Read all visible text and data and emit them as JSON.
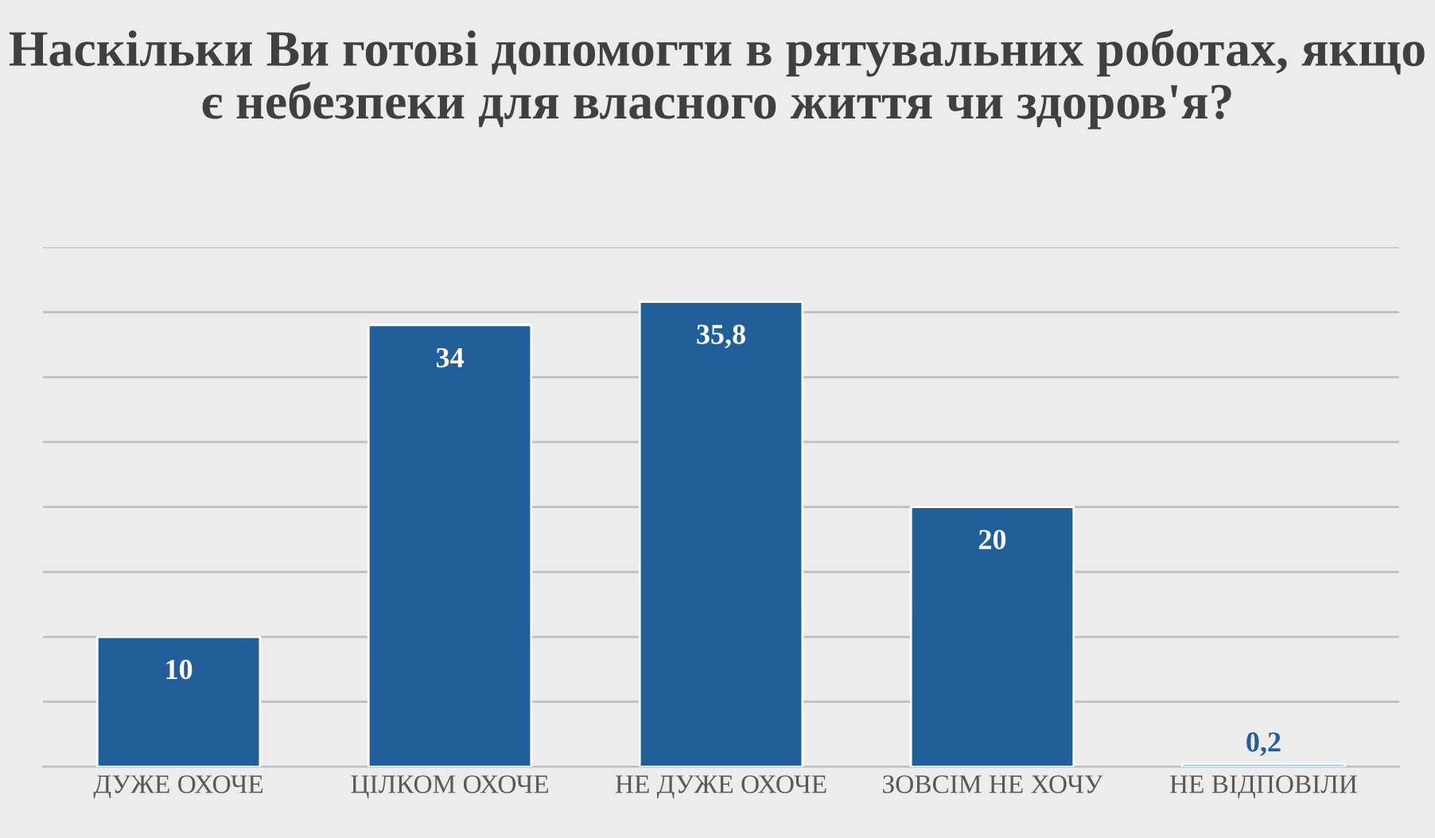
{
  "chart_data": {
    "type": "bar",
    "title": "Наскільки Ви готові допомогти в рятувальних роботах, якщо є небезпеки для власного життя чи здоров'я?",
    "categories": [
      "ДУЖЕ ОХОЧЕ",
      "ЦІЛКОМ ОХОЧЕ",
      "НЕ ДУЖЕ ОХОЧЕ",
      "ЗОВСІМ НЕ ХОЧУ",
      "НЕ ВІДПОВІЛИ"
    ],
    "values": [
      10,
      34,
      35.8,
      20,
      0.2
    ],
    "value_labels": [
      "10",
      "34",
      "35,8",
      "20",
      "0,2"
    ],
    "color": "#215f9a",
    "ylim": [
      0,
      40
    ],
    "yticks": [
      {
        "value": 0,
        "label": null
      },
      {
        "value": 5,
        "label": null
      },
      {
        "value": 10,
        "label": null
      },
      {
        "value": 15,
        "label": null
      },
      {
        "value": 20,
        "label": null
      },
      {
        "value": 25,
        "label": null
      },
      {
        "value": 30,
        "label": null
      },
      {
        "value": 35,
        "label": null
      },
      {
        "value": 40,
        "label": null
      }
    ],
    "grid": "y",
    "tick_labels": "x"
  }
}
